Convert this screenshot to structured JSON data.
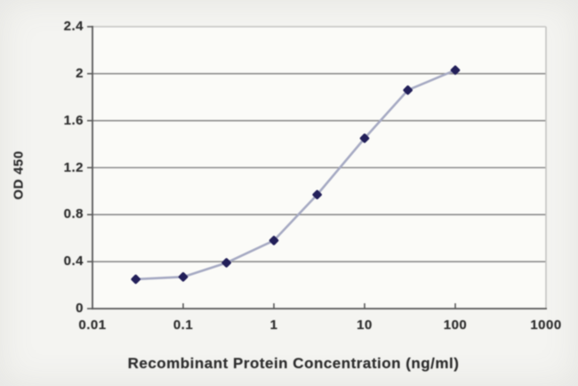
{
  "chart_data": {
    "type": "line",
    "title": "",
    "xlabel": "Recombinant Protein Concentration (ng/ml)",
    "ylabel": "OD 450",
    "x_scale": "log",
    "x": [
      0.03,
      0.1,
      0.3,
      1,
      3,
      10,
      30,
      100
    ],
    "series": [
      {
        "name": "OD 450",
        "values": [
          0.25,
          0.27,
          0.39,
          0.58,
          0.97,
          1.45,
          1.86,
          2.03
        ]
      }
    ],
    "xlim": [
      0.01,
      1000
    ],
    "ylim": [
      0,
      2.4
    ],
    "x_ticks": [
      0.01,
      0.1,
      1,
      10,
      100,
      1000
    ],
    "x_tick_labels": [
      "0.01",
      "0.1",
      "1",
      "10",
      "100",
      "1000"
    ],
    "y_ticks": [
      0,
      0.4,
      0.8,
      1.2,
      1.6,
      2,
      2.4
    ],
    "y_tick_labels": [
      "0",
      "0.4",
      "0.8",
      "1.2",
      "1.6",
      "2",
      "2.4"
    ],
    "grid": true,
    "legend": false,
    "marker_shape": "diamond",
    "colors": {
      "marker": "#23205a",
      "line": "#a6aac3",
      "grid": "#8d8d8d",
      "axis": "#5a5a5a",
      "plot_border": "#c4c4c1",
      "text": "#2e2e2e",
      "background": "#f4f4f1",
      "plot_background": "#fbfbf8"
    }
  }
}
